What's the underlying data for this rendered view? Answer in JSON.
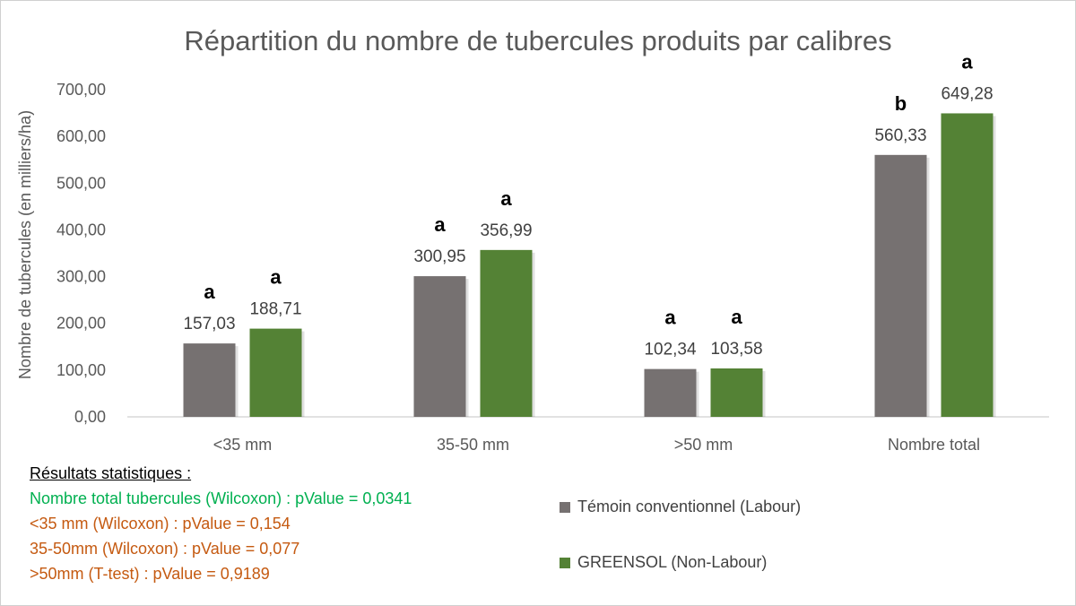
{
  "chart_data": {
    "type": "bar",
    "title": "Répartition du nombre de tubercules produits par calibres",
    "ylabel": "Nombre de tubercules (en milliers/ha)",
    "xlabel": "",
    "ylim": [
      0,
      700
    ],
    "yticks": [
      0,
      100,
      200,
      300,
      400,
      500,
      600,
      700
    ],
    "ytick_labels": [
      "0,00",
      "100,00",
      "200,00",
      "300,00",
      "400,00",
      "500,00",
      "600,00",
      "700,00"
    ],
    "categories": [
      "<35 mm",
      "35-50 mm",
      ">50 mm",
      "Nombre total"
    ],
    "series": [
      {
        "name": "Témoin conventionnel (Labour)",
        "color": "#767171",
        "values": [
          157.03,
          300.95,
          102.34,
          560.33
        ],
        "value_labels": [
          "157,03",
          "300,95",
          "102,34",
          "560,33"
        ],
        "letters": [
          "a",
          "a",
          "a",
          "b"
        ]
      },
      {
        "name": "GREENSOL (Non-Labour)",
        "color": "#548235",
        "values": [
          188.71,
          356.99,
          103.58,
          649.28
        ],
        "value_labels": [
          "188,71",
          "356,99",
          "103,58",
          "649,28"
        ],
        "letters": [
          "a",
          "a",
          "a",
          "a"
        ]
      }
    ],
    "legend_position": "bottom-right",
    "grid": false
  },
  "stats": {
    "title": "Résultats statistiques :",
    "lines": [
      {
        "text": "Nombre total tubercules (Wilcoxon) : pValue = 0,0341",
        "color": "#00b050"
      },
      {
        "text": "<35 mm (Wilcoxon) : pValue = 0,154",
        "color": "#c55a11"
      },
      {
        "text": "35-50mm (Wilcoxon) : pValue = 0,077",
        "color": "#c55a11"
      },
      {
        "text": ">50mm (T-test) : pValue = 0,9189",
        "color": "#c55a11"
      }
    ]
  }
}
